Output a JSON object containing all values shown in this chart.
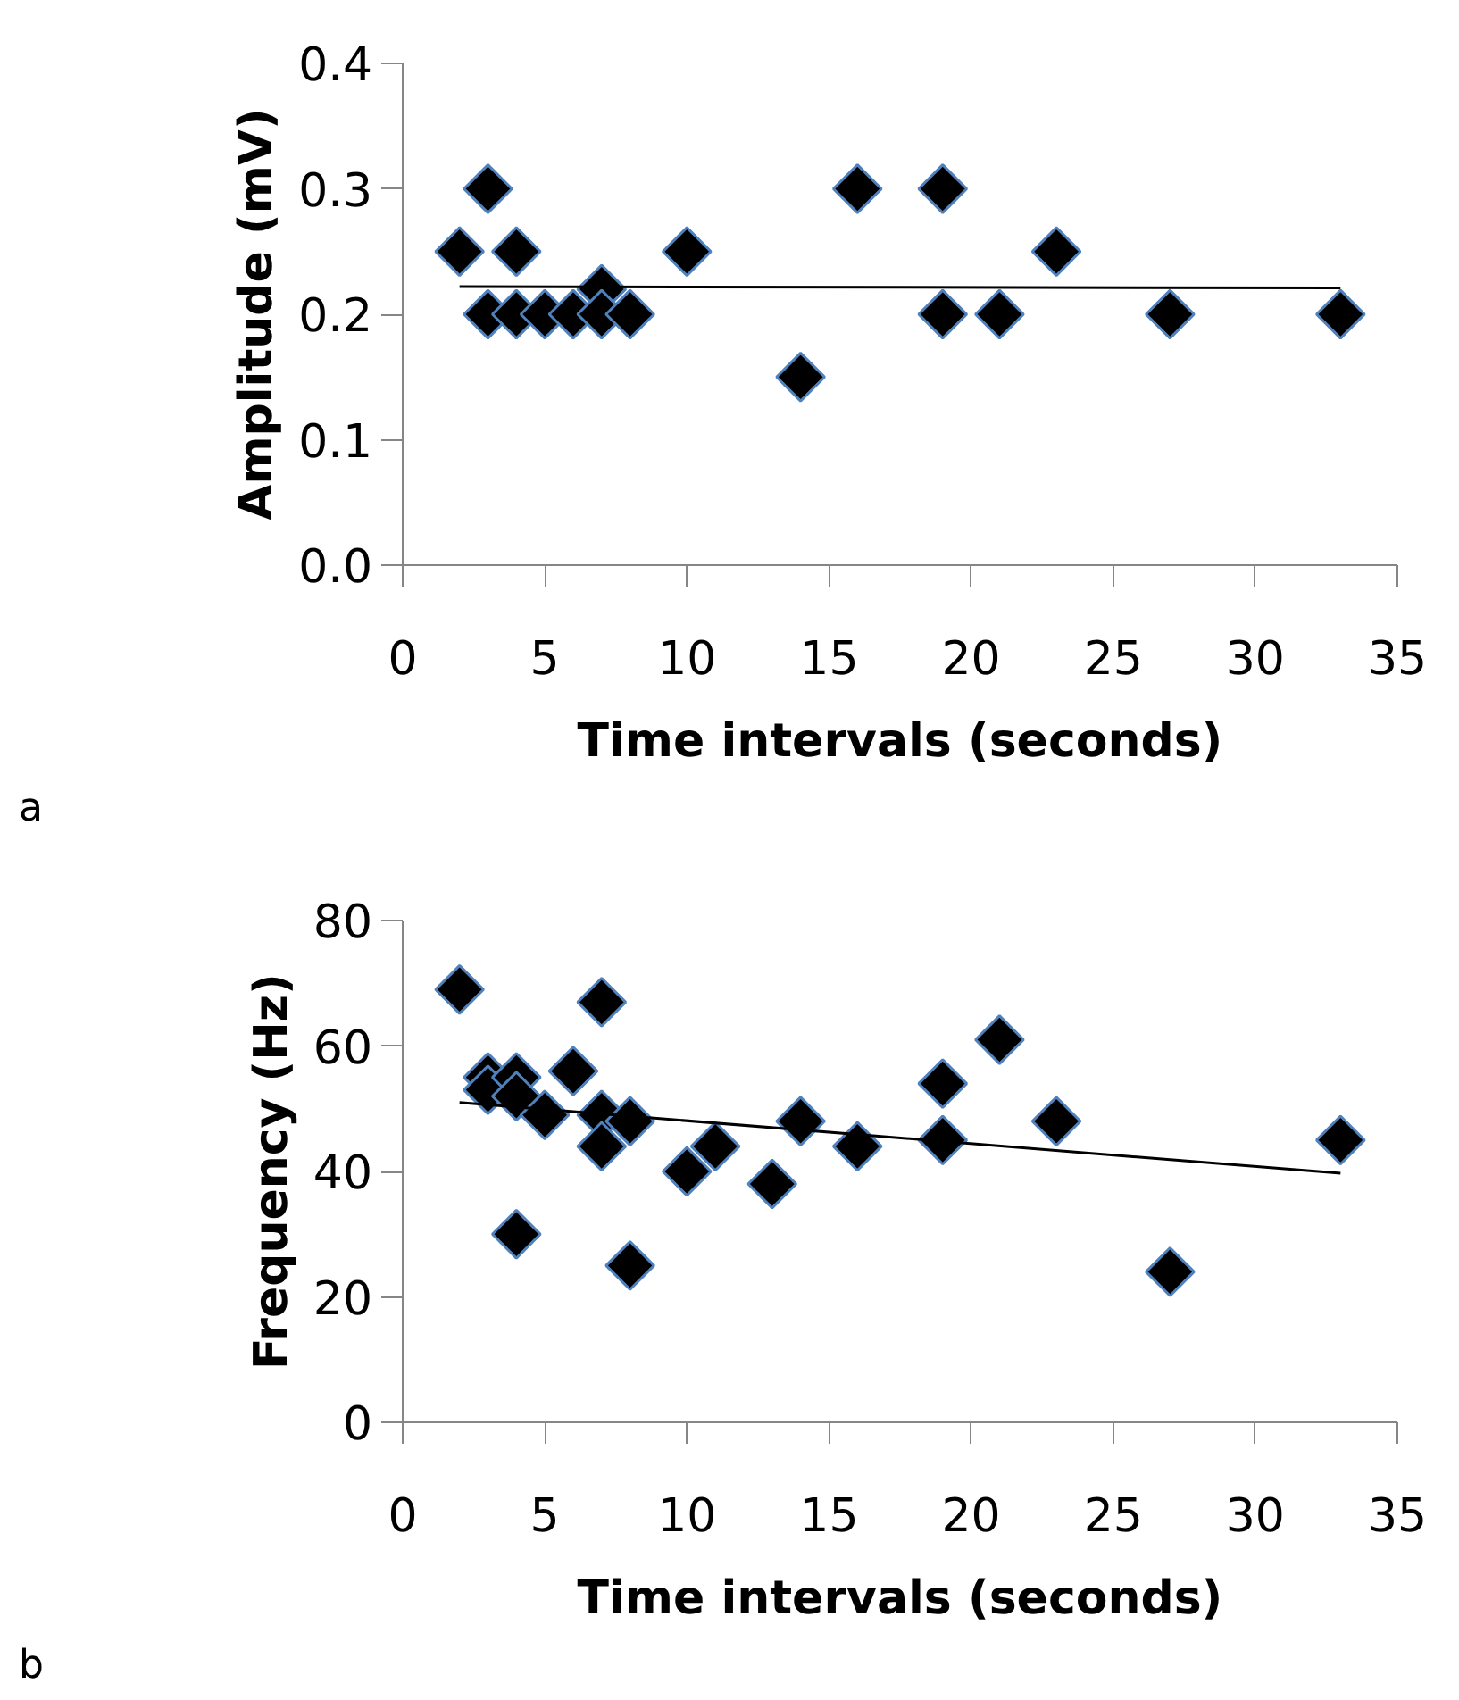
{
  "chart_data": [
    {
      "type": "scatter",
      "xlabel": "Time intervals (seconds)",
      "ylabel": "Amplitude (mV)",
      "annotations": [
        "a"
      ],
      "xlim": [
        0,
        35
      ],
      "xticks": [
        0,
        5,
        10,
        15,
        20,
        25,
        30,
        35
      ],
      "ylim": [
        0,
        0.4
      ],
      "yticks": [
        {
          "value": 0,
          "label": "0.0"
        },
        0.1,
        0.2,
        0.3,
        0.4
      ],
      "grid": false,
      "marker": "diamond",
      "series": [
        {
          "color": "#000000",
          "x": [
            2,
            3,
            3,
            4,
            4,
            5,
            6,
            7,
            7,
            8,
            10,
            14,
            16,
            19,
            19,
            21,
            23,
            27,
            33
          ],
          "values": [
            0.25,
            0.3,
            0.2,
            0.25,
            0.2,
            0.2,
            0.2,
            0.22,
            0.2,
            0.2,
            0.25,
            0.15,
            0.3,
            0.3,
            0.2,
            0.2,
            0.25,
            0.2,
            0.2
          ]
        },
        {
          "type": "line",
          "marker": "none",
          "color": "#000000",
          "x": [
            2,
            33
          ],
          "values": [
            0.222,
            0.221
          ]
        }
      ]
    },
    {
      "type": "scatter",
      "xlabel": "Time intervals (seconds)",
      "ylabel": "Frequency (Hz)",
      "annotations": [
        "b"
      ],
      "xlim": [
        0,
        35
      ],
      "xticks": [
        0,
        5,
        10,
        15,
        20,
        25,
        30,
        35
      ],
      "ylim": [
        0,
        80
      ],
      "yticks": [
        0,
        20,
        40,
        60,
        80
      ],
      "grid": false,
      "marker": "diamond",
      "series": [
        {
          "color": "#000000",
          "x": [
            2,
            3,
            3,
            4,
            4,
            4,
            5,
            6,
            7,
            7,
            7,
            8,
            8,
            10,
            11,
            13,
            14,
            16,
            19,
            19,
            21,
            23,
            27,
            33
          ],
          "values": [
            69,
            55,
            53,
            55,
            52,
            30,
            49,
            56,
            67,
            49,
            44,
            48,
            25,
            40,
            44,
            38,
            48,
            44,
            54,
            45,
            61,
            48,
            24,
            45
          ]
        },
        {
          "type": "line",
          "marker": "none",
          "color": "#000000",
          "x": [
            2,
            33
          ],
          "values": [
            51,
            39.7
          ]
        }
      ]
    }
  ]
}
